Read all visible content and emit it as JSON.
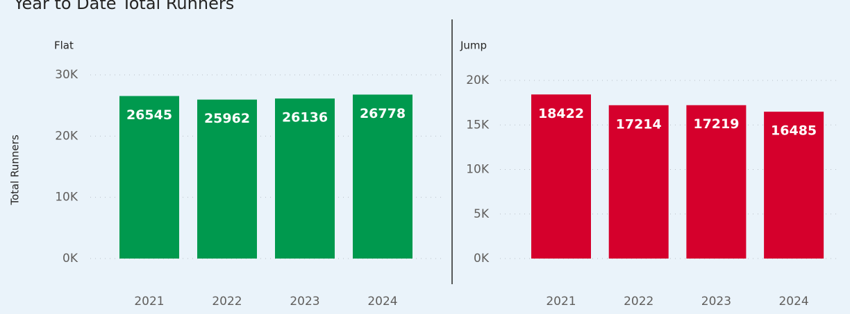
{
  "title": "Year to Date Total Runners",
  "y_label": "Total Runners",
  "chart_data": [
    {
      "type": "bar",
      "title": "Flat",
      "categories": [
        "2021",
        "2022",
        "2023",
        "2024"
      ],
      "values": [
        26545,
        25962,
        26136,
        26778
      ],
      "color": "#00994e",
      "ylim": [
        0,
        30000
      ],
      "yticks": [
        {
          "value": 0,
          "label": "0K"
        },
        {
          "value": 10000,
          "label": "10K"
        },
        {
          "value": 20000,
          "label": "20K"
        },
        {
          "value": 30000,
          "label": "30K"
        }
      ],
      "grid": true
    },
    {
      "type": "bar",
      "title": "Jump",
      "categories": [
        "2021",
        "2022",
        "2023",
        "2024"
      ],
      "values": [
        18422,
        17214,
        17219,
        16485
      ],
      "color": "#d5002c",
      "ylim": [
        0,
        20000
      ],
      "yticks": [
        {
          "value": 0,
          "label": "0K"
        },
        {
          "value": 5000,
          "label": "5K"
        },
        {
          "value": 10000,
          "label": "10K"
        },
        {
          "value": 15000,
          "label": "15K"
        },
        {
          "value": 20000,
          "label": "20K"
        }
      ],
      "grid": true
    }
  ]
}
